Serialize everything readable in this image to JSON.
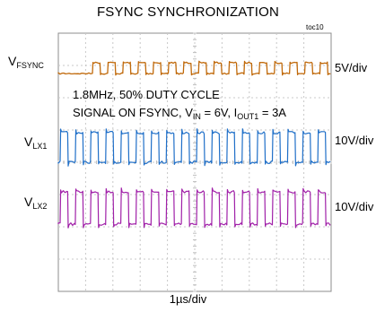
{
  "chart_data": {
    "type": "line",
    "title": "FSYNC SYNCHRONIZATION",
    "figure_tag": "toc10",
    "xlabel": "1µs/div",
    "grid": true,
    "divisions": {
      "x": 10,
      "y": 8
    },
    "annotation": {
      "line1": "1.8MHz, 50% DUTY CYCLE",
      "line2_prefix": "SIGNAL ON FSYNC, V",
      "line2_sub1": "IN",
      "line2_mid": " = 6V, I",
      "line2_sub2": "OUT1",
      "line2_suffix": " = 3A"
    },
    "series": [
      {
        "name_main": "V",
        "name_sub": "FSYNC",
        "scale": "5V/div",
        "color": "#c0690a",
        "period_div": 0.5556,
        "duty": 0.5
      },
      {
        "name_main": "V",
        "name_sub": "LX1",
        "scale": "10V/div",
        "color": "#1f6fc8",
        "period_div": 0.5556,
        "duty": 0.5
      },
      {
        "name_main": "V",
        "name_sub": "LX2",
        "scale": "10V/div",
        "color": "#a020a8",
        "period_div": 0.5556,
        "duty": 0.5
      }
    ]
  }
}
